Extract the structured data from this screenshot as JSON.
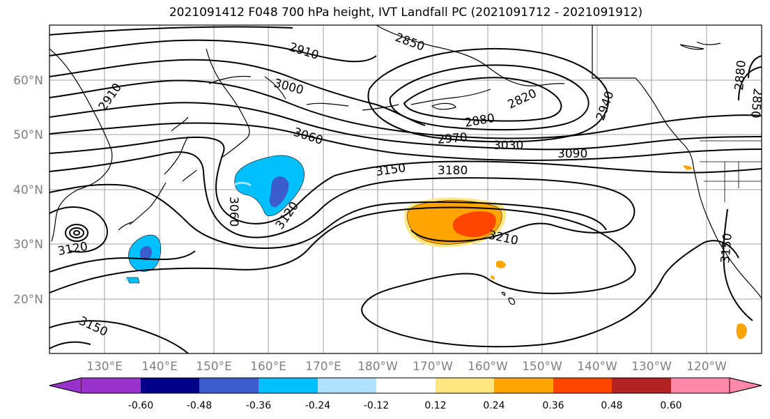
{
  "title": "2021091412 F048 700 hPa height, IVT Landfall PC (2021091712 - 2021091912)",
  "map": {
    "lon_labels": [
      "130°E",
      "140°E",
      "150°E",
      "160°E",
      "170°E",
      "180°W",
      "170°W",
      "160°W",
      "150°W",
      "140°W",
      "130°W",
      "120°W"
    ],
    "lat_labels": [
      "60°N",
      "50°N",
      "40°N",
      "30°N",
      "20°N"
    ],
    "contour_labels": [
      "2850",
      "2910",
      "3000",
      "2910",
      "3060",
      "2820",
      "2880",
      "2970",
      "3030",
      "3090",
      "2940",
      "2880",
      "2850",
      "3150",
      "3180",
      "3060",
      "3120",
      "3210",
      "3120",
      "3150",
      "3150"
    ]
  },
  "colorbar": {
    "tick_labels": [
      "-0.60",
      "-0.48",
      "-0.36",
      "-0.24",
      "-0.12",
      "0.12",
      "0.24",
      "0.36",
      "0.48",
      "0.60"
    ],
    "colors": [
      "#9932cc",
      "#00008b",
      "#3a5ccc",
      "#00bfff",
      "#b0e0ff",
      "#ffffff",
      "#ffe680",
      "#ffa500",
      "#ff4500",
      "#b22222",
      "#ff88aa"
    ]
  }
}
